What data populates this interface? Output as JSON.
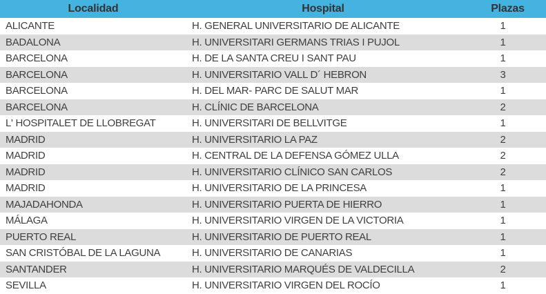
{
  "colors": {
    "header_bg": "#45b3df",
    "stripe_bg": "#dcdcdc",
    "header_text": "#333333",
    "cell_text": "#3f3f3f",
    "page_bg": "#ffffff"
  },
  "chart_data": {
    "type": "table",
    "columns": [
      "Localidad",
      "Hospital",
      "Plazas"
    ],
    "rows": [
      [
        "ALICANTE",
        "H. GENERAL UNIVERSITARIO DE ALICANTE",
        1
      ],
      [
        "BADALONA",
        "H. UNIVERSITARI GERMANS TRIAS I PUJOL",
        1
      ],
      [
        "BARCELONA",
        "H. DE LA SANTA CREU I SANT PAU",
        1
      ],
      [
        "BARCELONA",
        "H. UNIVERSITARIO VALL D´ HEBRON",
        3
      ],
      [
        "BARCELONA",
        "H. DEL MAR- PARC DE SALUT MAR",
        1
      ],
      [
        "BARCELONA",
        "H. CLÍNIC DE BARCELONA",
        2
      ],
      [
        "L' HOSPITALET DE LLOBREGAT",
        "H. UNIVERSITARI DE BELLVITGE",
        1
      ],
      [
        "MADRID",
        "H. UNIVERSITARIO LA PAZ",
        2
      ],
      [
        "MADRID",
        "H. CENTRAL DE LA DEFENSA GÓMEZ ULLA",
        2
      ],
      [
        "MADRID",
        "H. UNIVERSITARIO CLÍNICO SAN CARLOS",
        2
      ],
      [
        "MADRID",
        "H. UNIVERSITARIO DE LA PRINCESA",
        1
      ],
      [
        "MAJADAHONDA",
        "H. UNIVERSITARIO PUERTA DE HIERRO",
        1
      ],
      [
        "MÁLAGA",
        "H. UNIVERSITARIO VIRGEN DE LA VICTORIA",
        1
      ],
      [
        "PUERTO REAL",
        "H. UNIVERSITARIO DE PUERTO REAL",
        1
      ],
      [
        "SAN CRISTÓBAL DE LA LAGUNA",
        "H. UNIVERSITARIO DE CANARIAS",
        1
      ],
      [
        "SANTANDER",
        "H. UNIVERSITARIO MARQUÉS DE VALDECILLA",
        2
      ],
      [
        "SEVILLA",
        "H. UNIVERSITARIO VIRGEN DEL ROCÍO",
        1
      ]
    ]
  }
}
